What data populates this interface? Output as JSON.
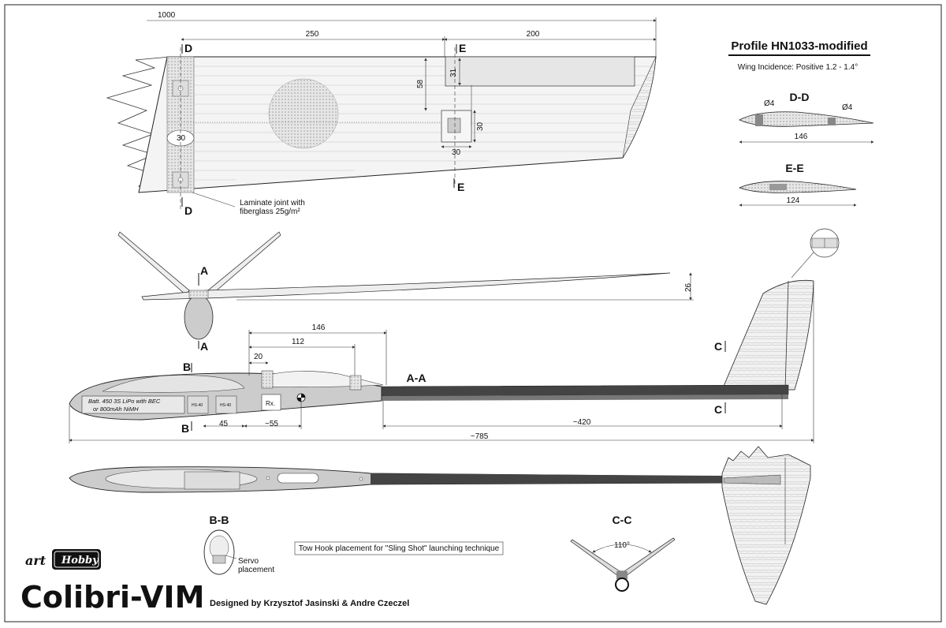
{
  "title": "Colibri-VIM",
  "brand": {
    "art": "art",
    "hobby": "Hobby"
  },
  "designer": "Designed by Krzysztof Jasinski & Andre Czeczel",
  "profile": {
    "title": "Profile HN1033-modified",
    "incidence": "Wing Incidence:  Positive 1.2 - 1.4°"
  },
  "wing": {
    "dim_span": "1000",
    "dim_250": "250",
    "dim_200": "200",
    "dim_58": "58",
    "dim_31": "31",
    "dim_30a": "30",
    "dim_30b": "30",
    "dim_30c": "30",
    "laminate": [
      "Laminate joint with",
      "fiberglass 25g/m²"
    ]
  },
  "sections": {
    "dd": "D-D",
    "ee": "E-E",
    "aa": "A-A",
    "bb": "B-B",
    "cc": "C-C",
    "dd_phi1": "Ø4",
    "dd_phi2": "Ø4",
    "dd_len": "146",
    "ee_len": "124",
    "cc_angle": "110°",
    "marks": {
      "d": "D",
      "e": "E",
      "a": "A",
      "b": "B",
      "c": "C"
    }
  },
  "side": {
    "dim_26": "26",
    "dim_146": "146",
    "dim_112": "112",
    "dim_20": "20",
    "dim_45": "45",
    "dim_55": "~55",
    "dim_420": "~420",
    "dim_785": "~785",
    "battery": [
      "Batt. 450 3S LiPo with BEC",
      "or 800mAh NiMH"
    ],
    "rx": "Rx.",
    "servo_a": "HS-40",
    "servo_b": "HS-40"
  },
  "bb_note": [
    "Servo",
    "placement"
  ],
  "towhook": "Tow Hook placement for \"Sling Shot\" launching technique"
}
